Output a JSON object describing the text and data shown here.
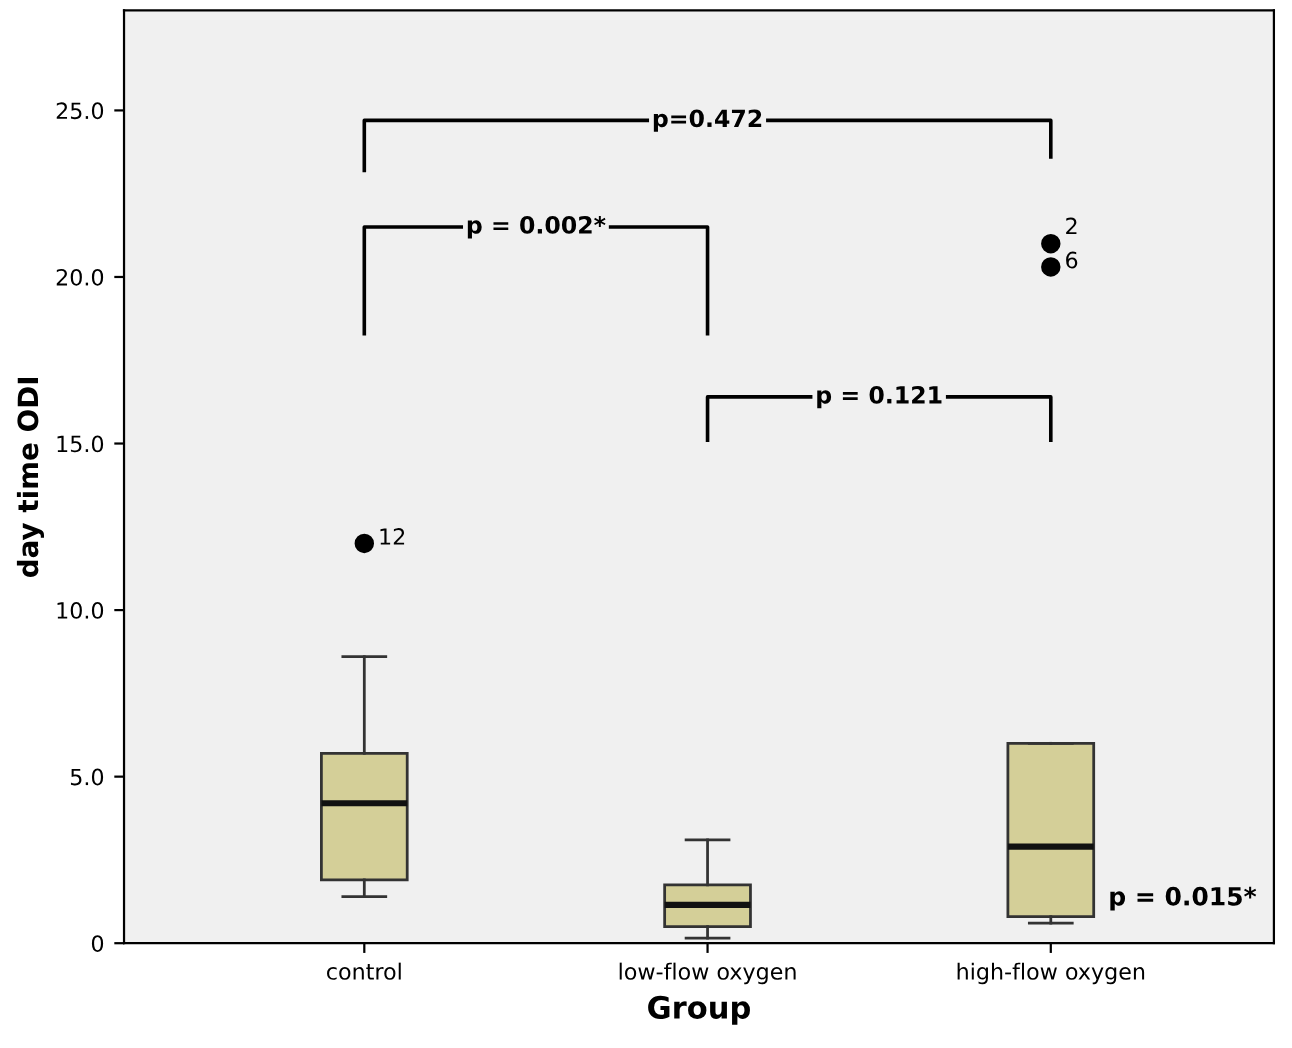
{
  "chart_data": {
    "type": "box",
    "xlabel": "Group",
    "ylabel": "day time ODI",
    "categories": [
      "control",
      "low-flow oxygen",
      "high-flow oxygen"
    ],
    "boxes": [
      {
        "low": 1.4,
        "q1": 1.9,
        "median": 4.2,
        "q3": 5.7,
        "high": 8.6,
        "outliers": [
          12.0
        ]
      },
      {
        "low": 0.15,
        "q1": 0.5,
        "median": 1.15,
        "q3": 1.75,
        "high": 3.1
      },
      {
        "low": 0.6,
        "q1": 0.8,
        "median": 2.9,
        "q3": 6.0,
        "high": 6.0,
        "outliers": [
          21.0,
          20.3
        ]
      }
    ],
    "color": "#d4cf98",
    "ylim": [
      0,
      28
    ],
    "yticks": [
      0,
      {
        "value": 5,
        "label": "5.0"
      },
      {
        "value": 10,
        "label": "10.0"
      },
      {
        "value": 15,
        "label": "15.0"
      },
      {
        "value": 20,
        "label": "20.0"
      },
      {
        "value": 25,
        "label": "25.0"
      }
    ],
    "grid": false,
    "marker": "circle",
    "annotations": [
      "12",
      "2",
      "6",
      "p=0.472",
      "p = 0.002*",
      "p = 0.121",
      "p = 0.015*"
    ]
  }
}
